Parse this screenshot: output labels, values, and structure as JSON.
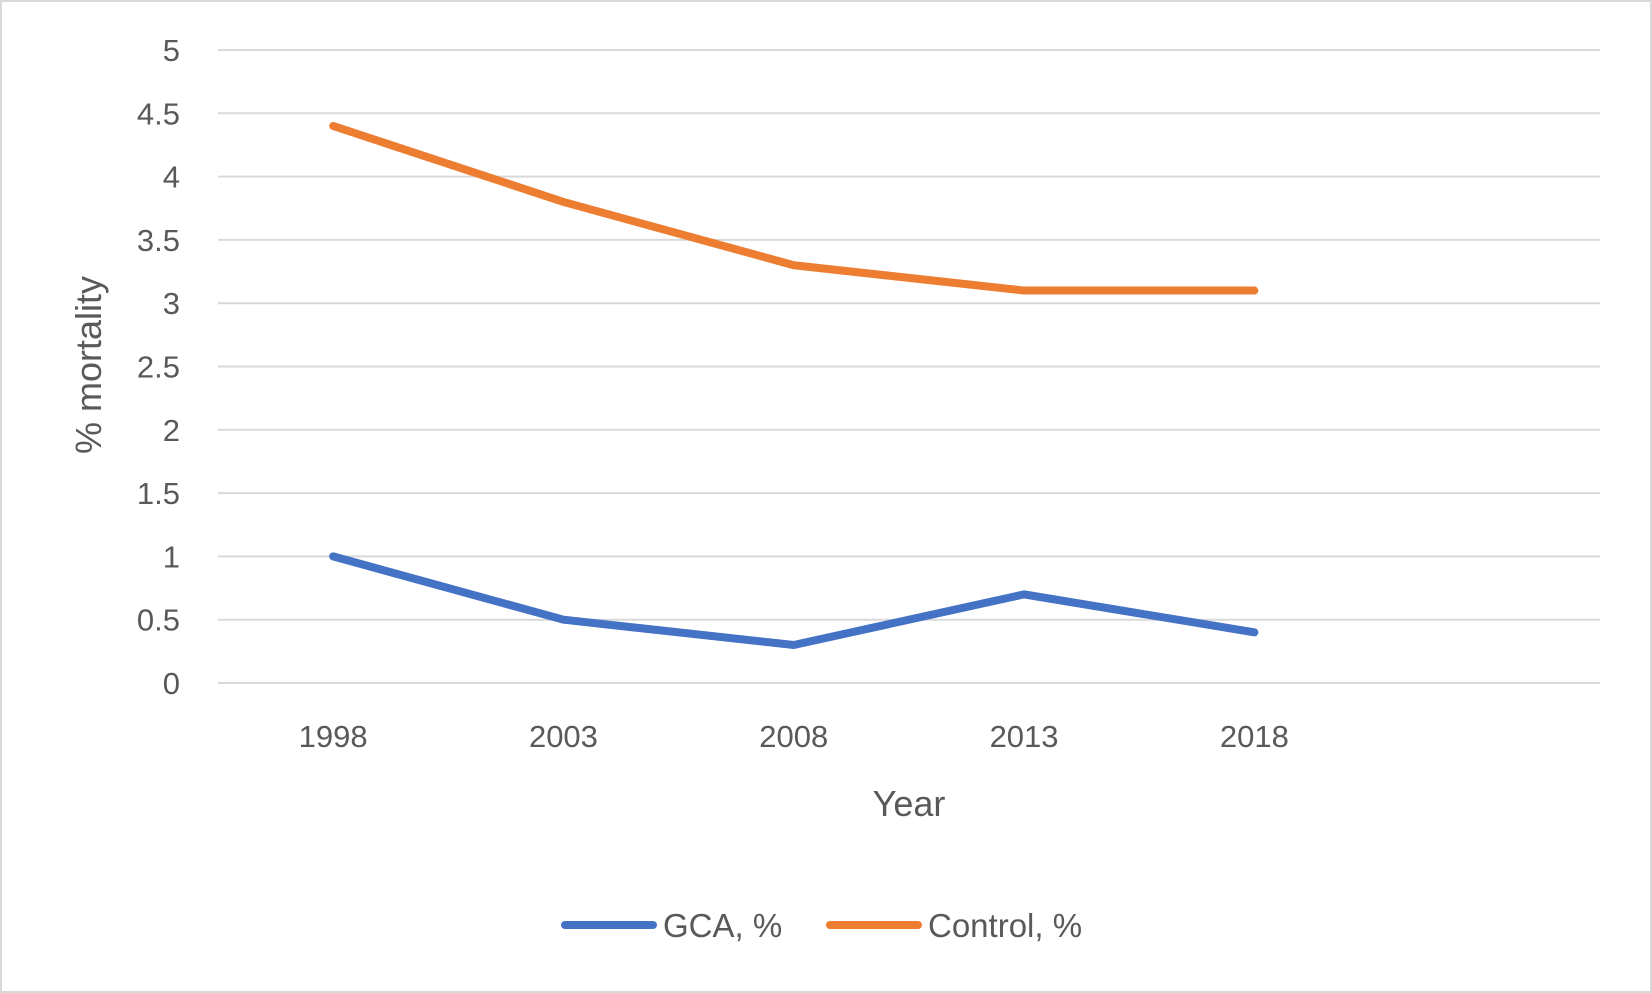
{
  "chart_data": {
    "type": "line",
    "title": "",
    "xlabel": "Year",
    "ylabel": "% mortality",
    "categories": [
      "1998",
      "2003",
      "2008",
      "2013",
      "2018"
    ],
    "ylim": [
      0,
      5
    ],
    "yticks": [
      0,
      0.5,
      1,
      1.5,
      2,
      2.5,
      3,
      3.5,
      4,
      4.5,
      5
    ],
    "ytick_labels": [
      "0",
      "0.5",
      "1",
      "1.5",
      "2",
      "2.5",
      "3",
      "3.5",
      "4",
      "4.5",
      "5"
    ],
    "grid": true,
    "legend_position": "bottom",
    "series": [
      {
        "name": "GCA, %",
        "color": "#4472c4",
        "values": [
          1.0,
          0.5,
          0.3,
          0.7,
          0.4
        ]
      },
      {
        "name": "Control, %",
        "color": "#ed7d31",
        "values": [
          4.4,
          3.8,
          3.3,
          3.1,
          3.1
        ]
      }
    ]
  }
}
